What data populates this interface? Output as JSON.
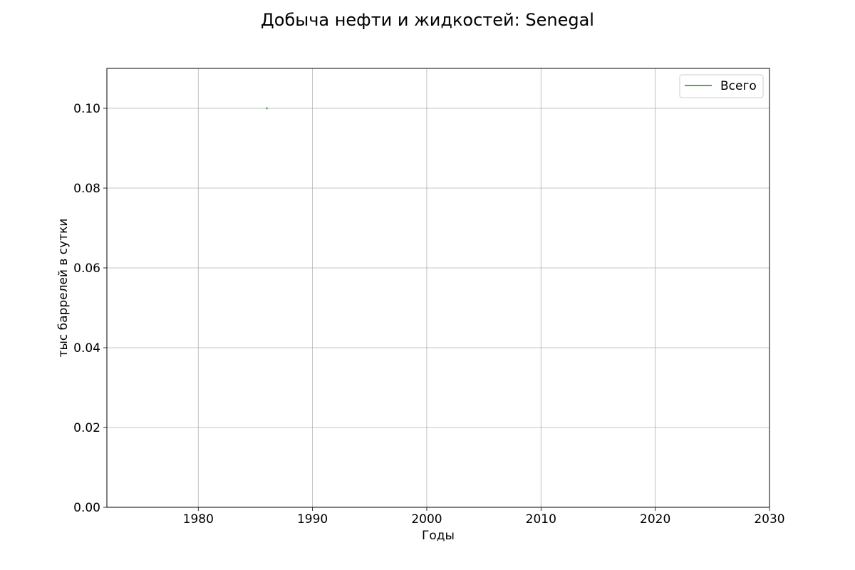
{
  "chart_data": {
    "type": "line",
    "title": "Добыча нефти и жидкостей: Senegal",
    "xlabel": "Годы",
    "ylabel": "тыс баррелей в сутки",
    "xlim": [
      1972,
      2030
    ],
    "ylim": [
      0,
      0.11
    ],
    "xticks": [
      1980,
      1990,
      2000,
      2010,
      2020,
      2030
    ],
    "yticks": [
      0.0,
      0.02,
      0.04,
      0.06,
      0.08,
      0.1
    ],
    "xtick_labels": [
      "1980",
      "1990",
      "2000",
      "2010",
      "2020",
      "2030"
    ],
    "ytick_labels": [
      "0.00",
      "0.02",
      "0.04",
      "0.06",
      "0.08",
      "0.10"
    ],
    "grid": true,
    "legend_position": "top-right",
    "series": [
      {
        "name": "Всего",
        "color": "#4daf4a",
        "x": [
          1986
        ],
        "y": [
          0.1
        ]
      }
    ]
  }
}
